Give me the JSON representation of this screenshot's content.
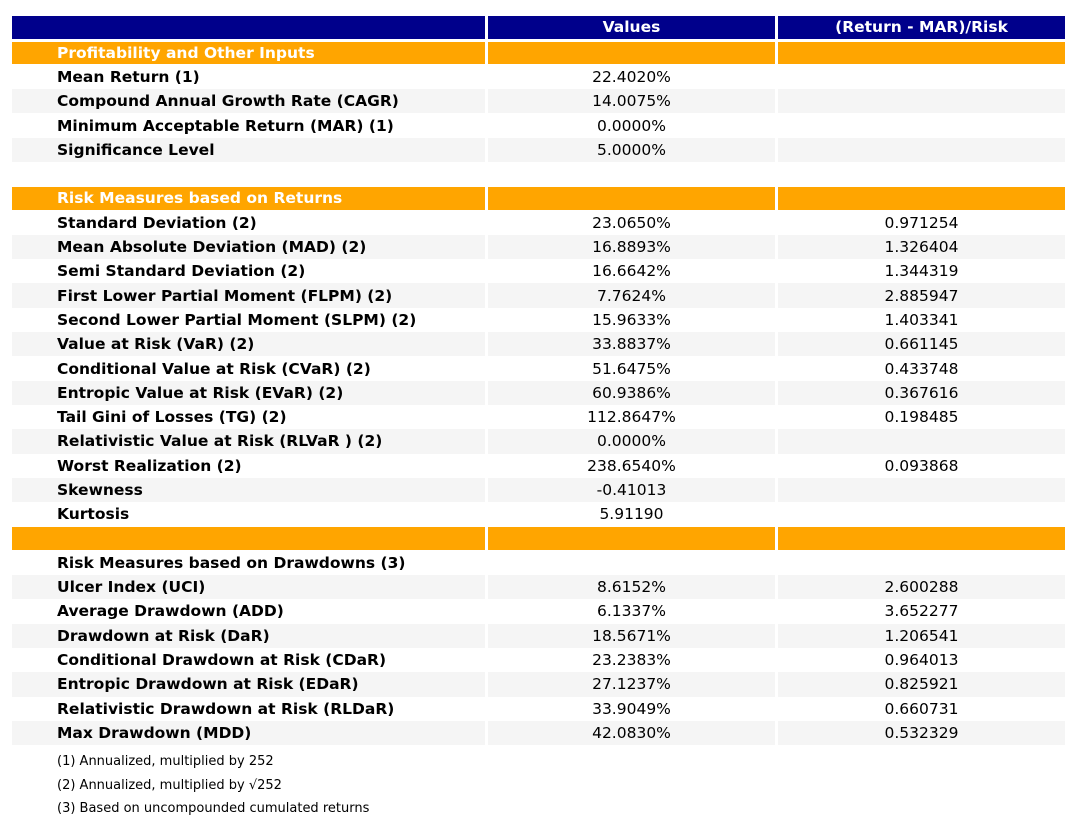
{
  "colors": {
    "header_bg": "#00008B",
    "section_bg": "#FFA500",
    "stripe_bg": "#F5F5F5",
    "header_text": "#FFFFFF",
    "body_text": "#000000"
  },
  "table": {
    "header": {
      "col_label": "",
      "col_values": "Values",
      "col_ratio": "(Return - MAR)/Risk"
    },
    "rows": [
      {
        "bg": "orange",
        "label": "Profitability and Other Inputs",
        "value": "",
        "ratio": ""
      },
      {
        "bg": "white",
        "label": "Mean Return (1)",
        "value": "22.4020%",
        "ratio": ""
      },
      {
        "bg": "gray",
        "label": "Compound Annual Growth Rate (CAGR)",
        "value": "14.0075%",
        "ratio": ""
      },
      {
        "bg": "white",
        "label": "Minimum Acceptable Return (MAR) (1)",
        "value": "0.0000%",
        "ratio": ""
      },
      {
        "bg": "gray",
        "label": "Significance Level",
        "value": "5.0000%",
        "ratio": ""
      },
      {
        "bg": "none",
        "label": "",
        "value": "",
        "ratio": ""
      },
      {
        "bg": "orange",
        "label": "Risk Measures based on Returns",
        "value": "",
        "ratio": ""
      },
      {
        "bg": "white",
        "label": "Standard Deviation (2)",
        "value": "23.0650%",
        "ratio": "0.971254"
      },
      {
        "bg": "gray",
        "label": "Mean Absolute Deviation (MAD) (2)",
        "value": "16.8893%",
        "ratio": "1.326404"
      },
      {
        "bg": "white",
        "label": "Semi Standard Deviation (2)",
        "value": "16.6642%",
        "ratio": "1.344319"
      },
      {
        "bg": "gray",
        "label": "First Lower Partial Moment (FLPM) (2)",
        "value": "7.7624%",
        "ratio": "2.885947"
      },
      {
        "bg": "white",
        "label": "Second Lower Partial Moment (SLPM) (2)",
        "value": "15.9633%",
        "ratio": "1.403341"
      },
      {
        "bg": "gray",
        "label": "Value at Risk (VaR) (2)",
        "value": "33.8837%",
        "ratio": "0.661145"
      },
      {
        "bg": "white",
        "label": "Conditional Value at Risk (CVaR) (2)",
        "value": "51.6475%",
        "ratio": "0.433748"
      },
      {
        "bg": "gray",
        "label": "Entropic Value at Risk (EVaR) (2)",
        "value": "60.9386%",
        "ratio": "0.367616"
      },
      {
        "bg": "white",
        "label": "Tail Gini of Losses (TG) (2)",
        "value": "112.8647%",
        "ratio": "0.198485"
      },
      {
        "bg": "gray",
        "label": "Relativistic Value at Risk (RLVaR ) (2)",
        "value": "0.0000%",
        "ratio": ""
      },
      {
        "bg": "white",
        "label": "Worst Realization (2)",
        "value": "238.6540%",
        "ratio": "0.093868"
      },
      {
        "bg": "gray",
        "label": "Skewness",
        "value": "-0.41013",
        "ratio": ""
      },
      {
        "bg": "white",
        "label": "Kurtosis",
        "value": "5.91190",
        "ratio": ""
      },
      {
        "bg": "orange",
        "label": "",
        "value": "",
        "ratio": ""
      },
      {
        "bg": "white",
        "label": "Risk Measures based on Drawdowns (3)",
        "value": "",
        "ratio": ""
      },
      {
        "bg": "gray",
        "label": "Ulcer Index (UCI)",
        "value": "8.6152%",
        "ratio": "2.600288"
      },
      {
        "bg": "white",
        "label": "Average Drawdown (ADD)",
        "value": "6.1337%",
        "ratio": "3.652277"
      },
      {
        "bg": "gray",
        "label": "Drawdown at Risk (DaR)",
        "value": "18.5671%",
        "ratio": "1.206541"
      },
      {
        "bg": "white",
        "label": "Conditional Drawdown at Risk (CDaR)",
        "value": "23.2383%",
        "ratio": "0.964013"
      },
      {
        "bg": "gray",
        "label": "Entropic Drawdown at Risk (EDaR)",
        "value": "27.1237%",
        "ratio": "0.825921"
      },
      {
        "bg": "white",
        "label": "Relativistic Drawdown at Risk (RLDaR)",
        "value": "33.9049%",
        "ratio": "0.660731"
      },
      {
        "bg": "gray",
        "label": "Max Drawdown (MDD)",
        "value": "42.0830%",
        "ratio": "0.532329"
      }
    ],
    "footnotes": [
      "(1) Annualized, multiplied by 252",
      "(2) Annualized, multiplied by √252",
      "(3) Based on uncompounded cumulated returns"
    ]
  },
  "chart_data": {
    "type": "table",
    "columns": [
      "",
      "Values",
      "(Return - MAR)/Risk"
    ],
    "sections": [
      {
        "title": "Profitability and Other Inputs",
        "rows": [
          [
            "Mean Return (1)",
            "22.4020%",
            ""
          ],
          [
            "Compound Annual Growth Rate (CAGR)",
            "14.0075%",
            ""
          ],
          [
            "Minimum Acceptable Return (MAR) (1)",
            "0.0000%",
            ""
          ],
          [
            "Significance Level",
            "5.0000%",
            ""
          ]
        ]
      },
      {
        "title": "Risk Measures based on Returns",
        "rows": [
          [
            "Standard Deviation (2)",
            "23.0650%",
            "0.971254"
          ],
          [
            "Mean Absolute Deviation (MAD) (2)",
            "16.8893%",
            "1.326404"
          ],
          [
            "Semi Standard Deviation (2)",
            "16.6642%",
            "1.344319"
          ],
          [
            "First Lower Partial Moment (FLPM) (2)",
            "7.7624%",
            "2.885947"
          ],
          [
            "Second Lower Partial Moment (SLPM) (2)",
            "15.9633%",
            "1.403341"
          ],
          [
            "Value at Risk (VaR) (2)",
            "33.8837%",
            "0.661145"
          ],
          [
            "Conditional Value at Risk (CVaR) (2)",
            "51.6475%",
            "0.433748"
          ],
          [
            "Entropic Value at Risk (EVaR) (2)",
            "60.9386%",
            "0.367616"
          ],
          [
            "Tail Gini of Losses (TG) (2)",
            "112.8647%",
            "0.198485"
          ],
          [
            "Relativistic Value at Risk (RLVaR ) (2)",
            "0.0000%",
            ""
          ],
          [
            "Worst Realization (2)",
            "238.6540%",
            "0.093868"
          ],
          [
            "Skewness",
            "-0.41013",
            ""
          ],
          [
            "Kurtosis",
            "5.91190",
            ""
          ]
        ]
      },
      {
        "title": "Risk Measures based on Drawdowns (3)",
        "rows": [
          [
            "Ulcer Index (UCI)",
            "8.6152%",
            "2.600288"
          ],
          [
            "Average Drawdown (ADD)",
            "6.1337%",
            "3.652277"
          ],
          [
            "Drawdown at Risk (DaR)",
            "18.5671%",
            "1.206541"
          ],
          [
            "Conditional Drawdown at Risk (CDaR)",
            "23.2383%",
            "0.964013"
          ],
          [
            "Entropic Drawdown at Risk (EDaR)",
            "27.1237%",
            "0.825921"
          ],
          [
            "Relativistic Drawdown at Risk (RLDaR)",
            "33.9049%",
            "0.660731"
          ],
          [
            "Max Drawdown (MDD)",
            "42.0830%",
            "0.532329"
          ]
        ]
      }
    ],
    "footnotes": [
      "(1) Annualized, multiplied by 252",
      "(2) Annualized, multiplied by √252",
      "(3) Based on uncompounded cumulated returns"
    ]
  }
}
